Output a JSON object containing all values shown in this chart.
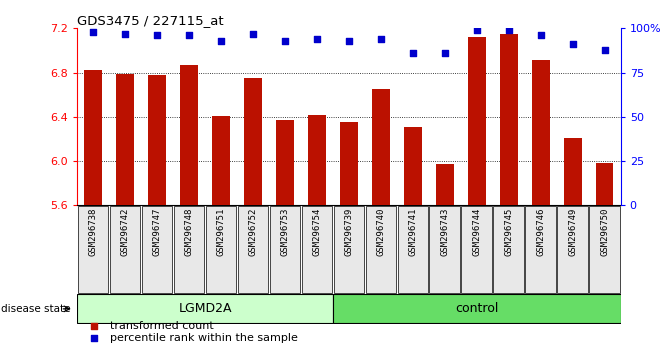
{
  "title": "GDS3475 / 227115_at",
  "samples": [
    "GSM296738",
    "GSM296742",
    "GSM296747",
    "GSM296748",
    "GSM296751",
    "GSM296752",
    "GSM296753",
    "GSM296754",
    "GSM296739",
    "GSM296740",
    "GSM296741",
    "GSM296743",
    "GSM296744",
    "GSM296745",
    "GSM296746",
    "GSM296749",
    "GSM296750"
  ],
  "bar_values": [
    6.82,
    6.79,
    6.78,
    6.87,
    6.41,
    6.75,
    6.37,
    6.42,
    6.35,
    6.65,
    6.31,
    5.97,
    7.12,
    7.15,
    6.91,
    6.21,
    5.98
  ],
  "dot_values": [
    98,
    97,
    96,
    96,
    93,
    97,
    93,
    94,
    93,
    94,
    86,
    86,
    99,
    99,
    96,
    91,
    88
  ],
  "groups": [
    {
      "label": "LGMD2A",
      "start": 0,
      "end": 7,
      "color": "#ccffcc"
    },
    {
      "label": "control",
      "start": 8,
      "end": 16,
      "color": "#66dd66"
    }
  ],
  "ylim_left": [
    5.6,
    7.2
  ],
  "ylim_right": [
    0,
    100
  ],
  "yticks_left": [
    5.6,
    6.0,
    6.4,
    6.8,
    7.2
  ],
  "yticks_right": [
    0,
    25,
    50,
    75,
    100
  ],
  "grid_values": [
    6.0,
    6.4,
    6.8
  ],
  "bar_color": "#bb1100",
  "dot_color": "#0000cc",
  "bar_bottom": 5.6,
  "disease_label": "disease state",
  "bg_color": "#e8e8e8",
  "legend_items": [
    {
      "color": "#bb1100",
      "marker": "s",
      "label": "transformed count"
    },
    {
      "color": "#0000cc",
      "marker": "s",
      "label": "percentile rank within the sample"
    }
  ]
}
